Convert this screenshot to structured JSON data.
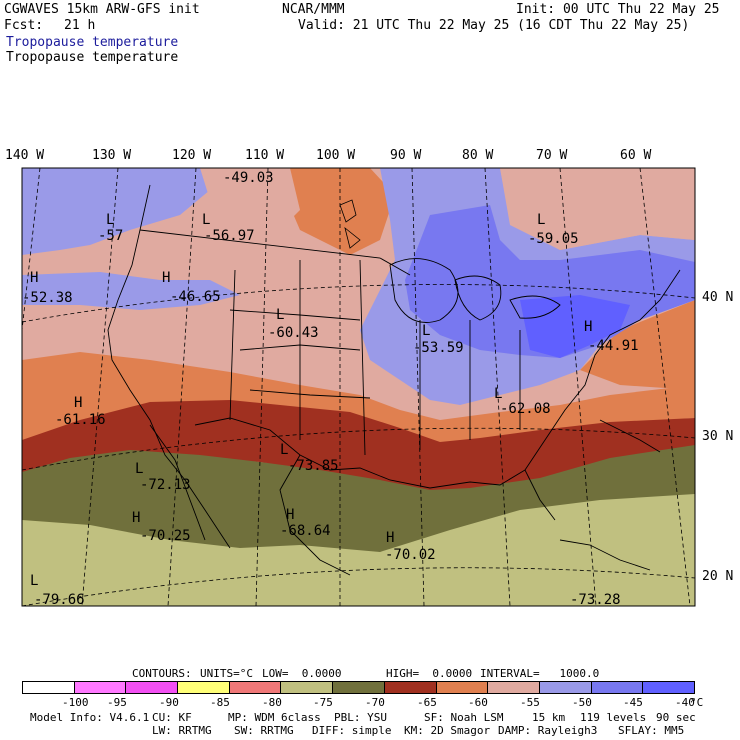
{
  "header": {
    "title": "CGWAVES 15km ARW-GFS init",
    "org": "NCAR/MMM",
    "init": "Init: 00 UTC Thu 22 May 25",
    "fcst_label": "Fcst:",
    "fcst_value": "21 h",
    "valid": "Valid: 21 UTC Thu 22 May 25 (16 CDT Thu 22 May 25)",
    "field_1": "Tropopause temperature",
    "field_2": "Tropopause temperature"
  },
  "longitude_labels": [
    "140 W",
    "130 W",
    "120 W",
    "110 W",
    "100 W",
    "90 W",
    "80 W",
    "70 W",
    "60 W"
  ],
  "latitude_labels": [
    "40 N",
    "30 N",
    "20 N"
  ],
  "pressure_centers": [
    {
      "type": "L",
      "value": "-49.03"
    },
    {
      "type": "L",
      "value": "-57"
    },
    {
      "type": "L",
      "value": "-56.97"
    },
    {
      "type": "L",
      "value": "-59.05"
    },
    {
      "type": "H",
      "value": "-52.38"
    },
    {
      "type": "H",
      "value": "-46.65"
    },
    {
      "type": "L",
      "value": "-60.43"
    },
    {
      "type": "L",
      "value": "-53.59"
    },
    {
      "type": "H",
      "value": "-44.91"
    },
    {
      "type": "H",
      "value": "-61.16"
    },
    {
      "type": "L",
      "value": "-62.08"
    },
    {
      "type": "L",
      "value": "-72.13"
    },
    {
      "type": "L",
      "value": "-73.85"
    },
    {
      "type": "H",
      "value": "-70.25"
    },
    {
      "type": "H",
      "value": "-68.64"
    },
    {
      "type": "H",
      "value": "-70.02"
    },
    {
      "type": "L",
      "value": "-79.66"
    },
    {
      "type": "L",
      "value": "-73.28"
    }
  ],
  "contours_line": {
    "label": "CONTOURS:",
    "units": "UNITS=°C",
    "low": "LOW=  0.0000",
    "high": "HIGH=  0.0000",
    "interval": "INTERVAL=   1000.0"
  },
  "colorbar": {
    "colors": [
      "#ffffff",
      "#ff78ff",
      "#f250f2",
      "#ffff78",
      "#f07878",
      "#c0c080",
      "#70703c",
      "#a03020",
      "#e08050",
      "#e0aaa0",
      "#9a9ae8",
      "#7878f0",
      "#6060ff"
    ],
    "labels": [
      "-100",
      "-95",
      "-90",
      "-85",
      "-80",
      "-75",
      "-70",
      "-65",
      "-60",
      "-55",
      "-50",
      "-45",
      "-40",
      "°C"
    ]
  },
  "footer": {
    "line1": [
      "Model Info: V4.6.1",
      "CU: KF",
      "MP: WDM 6class",
      "PBL: YSU",
      "SF: Noah LSM",
      "15 km",
      "119 levels",
      "90 sec"
    ],
    "line2": [
      "LW: RRTMG",
      "SW: RRTMG",
      "DIFF: simple",
      "KM: 2D Smagor",
      "DAMP: Rayleigh3",
      "SFLAY: MM5"
    ]
  }
}
